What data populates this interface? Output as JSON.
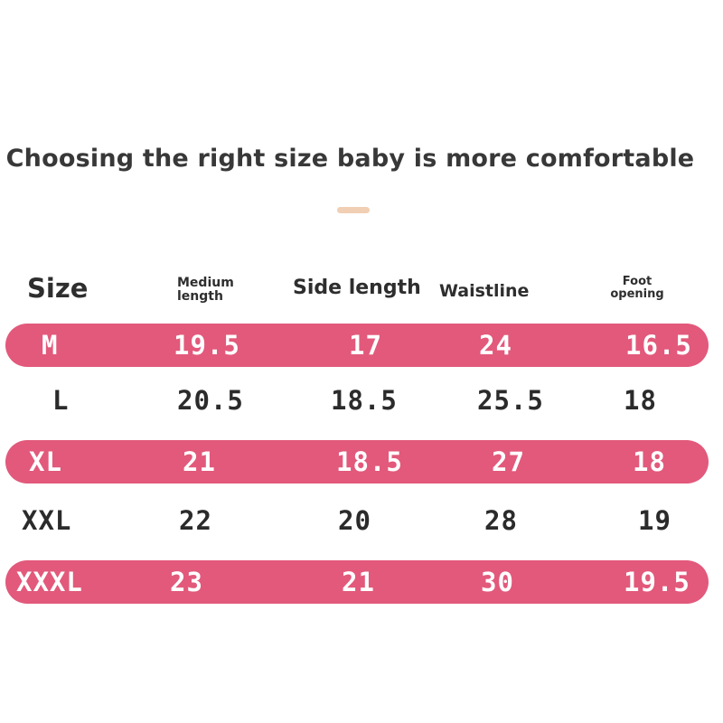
{
  "title": "Choosing the right size baby is more comfortable",
  "colors": {
    "band": "#e2597b",
    "divider": "#f0cfb5",
    "text": "#2b2b2b"
  },
  "headers": {
    "size": "Size",
    "medium_line1": "Medium",
    "medium_line2": "length",
    "side_length": "Side length",
    "waistline": "Waistline",
    "foot_line1": "Foot",
    "foot_line2": "opening"
  },
  "rows": [
    {
      "size": "M",
      "medium": "19.5",
      "side": "17",
      "waist": "24",
      "foot": "16.5",
      "highlight": true
    },
    {
      "size": "L",
      "medium": "20.5",
      "side": "18.5",
      "waist": "25.5",
      "foot": "18",
      "highlight": false
    },
    {
      "size": "XL",
      "medium": "21",
      "side": "18.5",
      "waist": "27",
      "foot": "18",
      "highlight": true
    },
    {
      "size": "XXL",
      "medium": "22",
      "side": "20",
      "waist": "28",
      "foot": "19",
      "highlight": false
    },
    {
      "size": "XXXL",
      "medium": "23",
      "side": "21",
      "waist": "30",
      "foot": "19.5",
      "highlight": true
    }
  ]
}
